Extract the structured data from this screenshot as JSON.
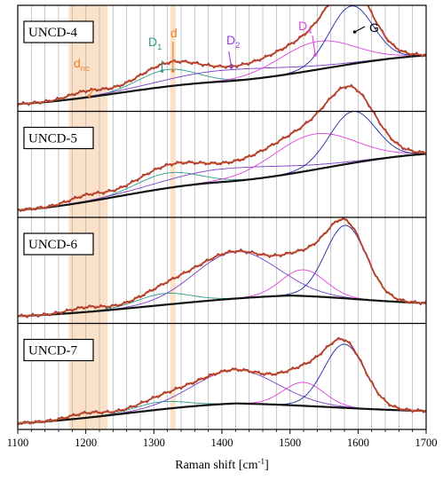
{
  "chart_data": {
    "type": "line",
    "xlabel": "Raman shift [cm",
    "xlabel_sup": "-1",
    "xlabel_close": "]",
    "xlim": [
      1100,
      1700
    ],
    "xticks": [
      1100,
      1200,
      1300,
      1400,
      1500,
      1600,
      1700
    ],
    "grid": "vertical",
    "highlight_bands": [
      {
        "label": "d_nc",
        "x": [
          1175,
          1232
        ],
        "color": "#f5c99a"
      },
      {
        "label": "d",
        "x": [
          1324,
          1332
        ],
        "color": "#f5c99a"
      }
    ],
    "colors": {
      "measured": "#a83a3a",
      "fit_total": "#f07f2a",
      "baseline": "#111111",
      "D1": "#2a9a8a",
      "D2": "#7a3ec8",
      "D4": "#e040e0",
      "G": "#1a2aa0",
      "annot_orange": "#f07f2a"
    },
    "panels": [
      {
        "name": "UNCD-4",
        "annotations": [
          {
            "text": "d",
            "sub": "nc",
            "color": "#f07f2a"
          },
          {
            "text": "D",
            "sub": "1",
            "color": "#2a9a8a"
          },
          {
            "text": "d",
            "sub": "",
            "color": "#f07f2a"
          },
          {
            "text": "D",
            "sub": "2",
            "color": "#9a3ee0"
          },
          {
            "text": "D",
            "sub": "4",
            "color": "#e040e0"
          },
          {
            "text": "G",
            "sub": "",
            "color": "#000000"
          }
        ],
        "components": {
          "D1": {
            "center": 1320,
            "amp": 0.18,
            "width": 42
          },
          "D2": {
            "center": 1410,
            "amp": 0.12,
            "width": 90
          },
          "D4": {
            "center": 1540,
            "amp": 0.3,
            "width": 55
          },
          "G": {
            "center": 1590,
            "amp": 0.62,
            "width": 32
          },
          "nc": {
            "center": 1200,
            "amp": 0.06,
            "width": 25
          }
        },
        "baseline": [
          [
            1100,
            0.04
          ],
          [
            1400,
            0.28
          ],
          [
            1700,
            0.56
          ]
        ]
      },
      {
        "name": "UNCD-5",
        "annotations": [],
        "components": {
          "D1": {
            "center": 1320,
            "amp": 0.16,
            "width": 45
          },
          "D2": {
            "center": 1410,
            "amp": 0.14,
            "width": 90
          },
          "D4": {
            "center": 1535,
            "amp": 0.38,
            "width": 60
          },
          "G": {
            "center": 1592,
            "amp": 0.55,
            "width": 34
          },
          "nc": {
            "center": 1200,
            "amp": 0.06,
            "width": 25
          }
        },
        "baseline": [
          [
            1100,
            0.04
          ],
          [
            1400,
            0.34
          ],
          [
            1700,
            0.64
          ]
        ]
      },
      {
        "name": "UNCD-6",
        "annotations": [],
        "components": {
          "D1": {
            "center": 1315,
            "amp": 0.12,
            "width": 40
          },
          "D2": {
            "center": 1420,
            "amp": 0.5,
            "width": 60
          },
          "D4": {
            "center": 1520,
            "amp": 0.28,
            "width": 32
          },
          "G": {
            "center": 1582,
            "amp": 0.78,
            "width": 30
          },
          "nc": {
            "center": 1200,
            "amp": 0.05,
            "width": 25
          }
        },
        "baseline": [
          [
            1100,
            0.04
          ],
          [
            1500,
            0.26
          ],
          [
            1700,
            0.18
          ]
        ]
      },
      {
        "name": "UNCD-7",
        "annotations": [],
        "components": {
          "D1": {
            "center": 1310,
            "amp": 0.08,
            "width": 38
          },
          "D2": {
            "center": 1420,
            "amp": 0.36,
            "width": 62
          },
          "D4": {
            "center": 1520,
            "amp": 0.25,
            "width": 30
          },
          "G": {
            "center": 1580,
            "amp": 0.68,
            "width": 30
          },
          "nc": {
            "center": 1200,
            "amp": 0.05,
            "width": 25
          }
        },
        "baseline": [
          [
            1100,
            0.03
          ],
          [
            1420,
            0.24
          ],
          [
            1700,
            0.16
          ]
        ]
      }
    ]
  }
}
